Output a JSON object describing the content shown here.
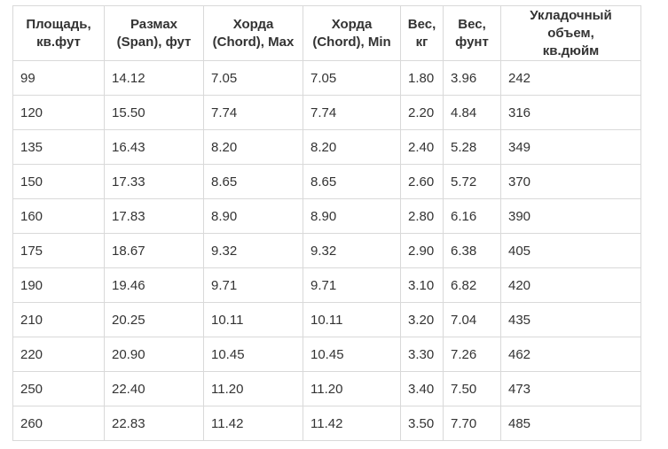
{
  "table": {
    "headers": [
      [
        "Площадь,",
        "кв.фут"
      ],
      [
        "Размах",
        "(Span), фут"
      ],
      [
        "Хорда",
        "(Chord), Max"
      ],
      [
        "Хорда",
        "(Chord), Min"
      ],
      [
        "Вес,",
        "кг"
      ],
      [
        "Вес,",
        "фунт"
      ],
      [
        "Укладочный объем,",
        "кв.дюйм"
      ]
    ],
    "rows": [
      [
        "99",
        "14.12",
        "7.05",
        "7.05",
        "1.80",
        "3.96",
        "242"
      ],
      [
        "120",
        "15.50",
        "7.74",
        "7.74",
        "2.20",
        "4.84",
        "316"
      ],
      [
        "135",
        "16.43",
        "8.20",
        "8.20",
        "2.40",
        "5.28",
        "349"
      ],
      [
        "150",
        "17.33",
        "8.65",
        "8.65",
        "2.60",
        "5.72",
        "370"
      ],
      [
        "160",
        "17.83",
        "8.90",
        "8.90",
        "2.80",
        "6.16",
        "390"
      ],
      [
        "175",
        "18.67",
        "9.32",
        "9.32",
        "2.90",
        "6.38",
        "405"
      ],
      [
        "190",
        "19.46",
        "9.71",
        "9.71",
        "3.10",
        "6.82",
        "420"
      ],
      [
        "210",
        "20.25",
        "10.11",
        "10.11",
        "3.20",
        "7.04",
        "435"
      ],
      [
        "220",
        "20.90",
        "10.45",
        "10.45",
        "3.30",
        "7.26",
        "462"
      ],
      [
        "250",
        "22.40",
        "11.20",
        "11.20",
        "3.40",
        "7.50",
        "473"
      ],
      [
        "260",
        "22.83",
        "11.42",
        "11.42",
        "3.50",
        "7.70",
        "485"
      ]
    ]
  }
}
